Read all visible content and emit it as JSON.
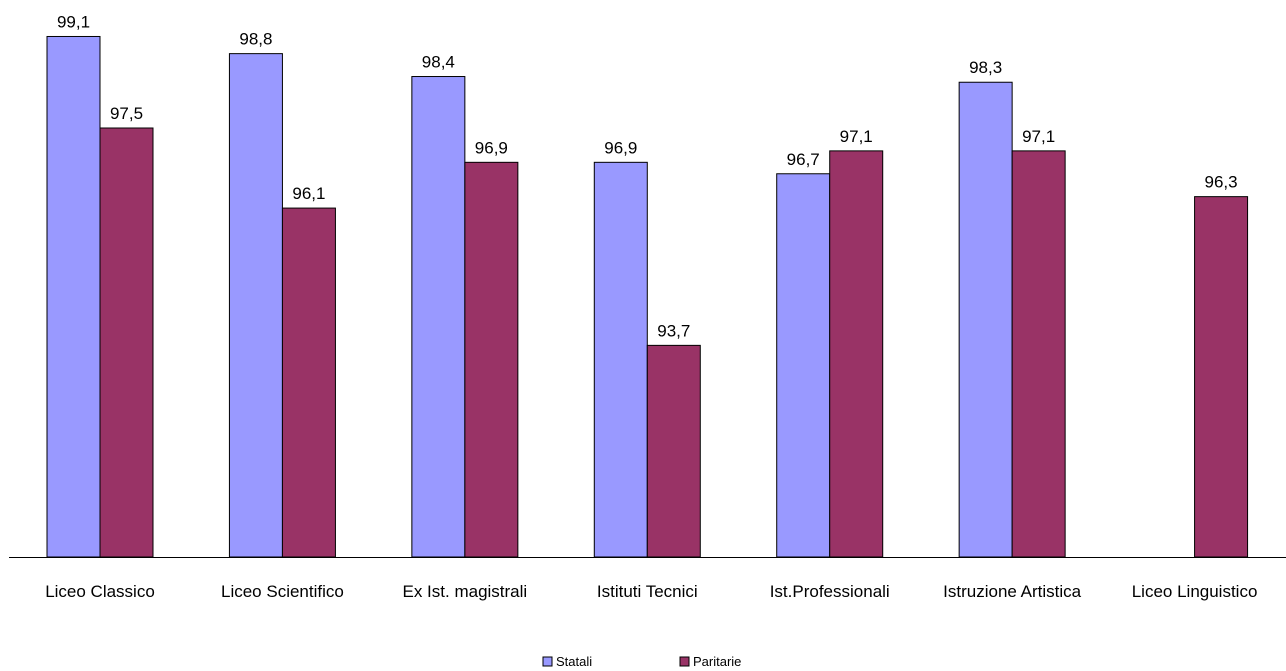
{
  "chart_data": {
    "type": "bar",
    "categories": [
      "Liceo Classico",
      "Liceo Scientifico",
      "Ex Ist. magistrali",
      "Istituti Tecnici",
      "Ist.Professionali",
      "Istruzione Artistica",
      "Liceo Linguistico"
    ],
    "series": [
      {
        "name": "Statali",
        "color": "#9999ff",
        "values": [
          99.1,
          98.8,
          98.4,
          96.9,
          96.7,
          98.3,
          null
        ],
        "labels": [
          "99,1",
          "98,8",
          "98,4",
          "96,9",
          "96,7",
          "98,3",
          ""
        ]
      },
      {
        "name": "Paritarie",
        "color": "#993366",
        "values": [
          97.5,
          96.1,
          96.9,
          93.7,
          97.1,
          97.1,
          96.3
        ],
        "labels": [
          "97,5",
          "96,1",
          "96,9",
          "93,7",
          "97,1",
          "97,1",
          "96,3"
        ]
      }
    ],
    "title": "",
    "xlabel": "",
    "ylabel": "",
    "ylim": [
      90,
      100
    ],
    "grid": false,
    "y_axis_visible": false,
    "legend_position": "bottom-center"
  }
}
